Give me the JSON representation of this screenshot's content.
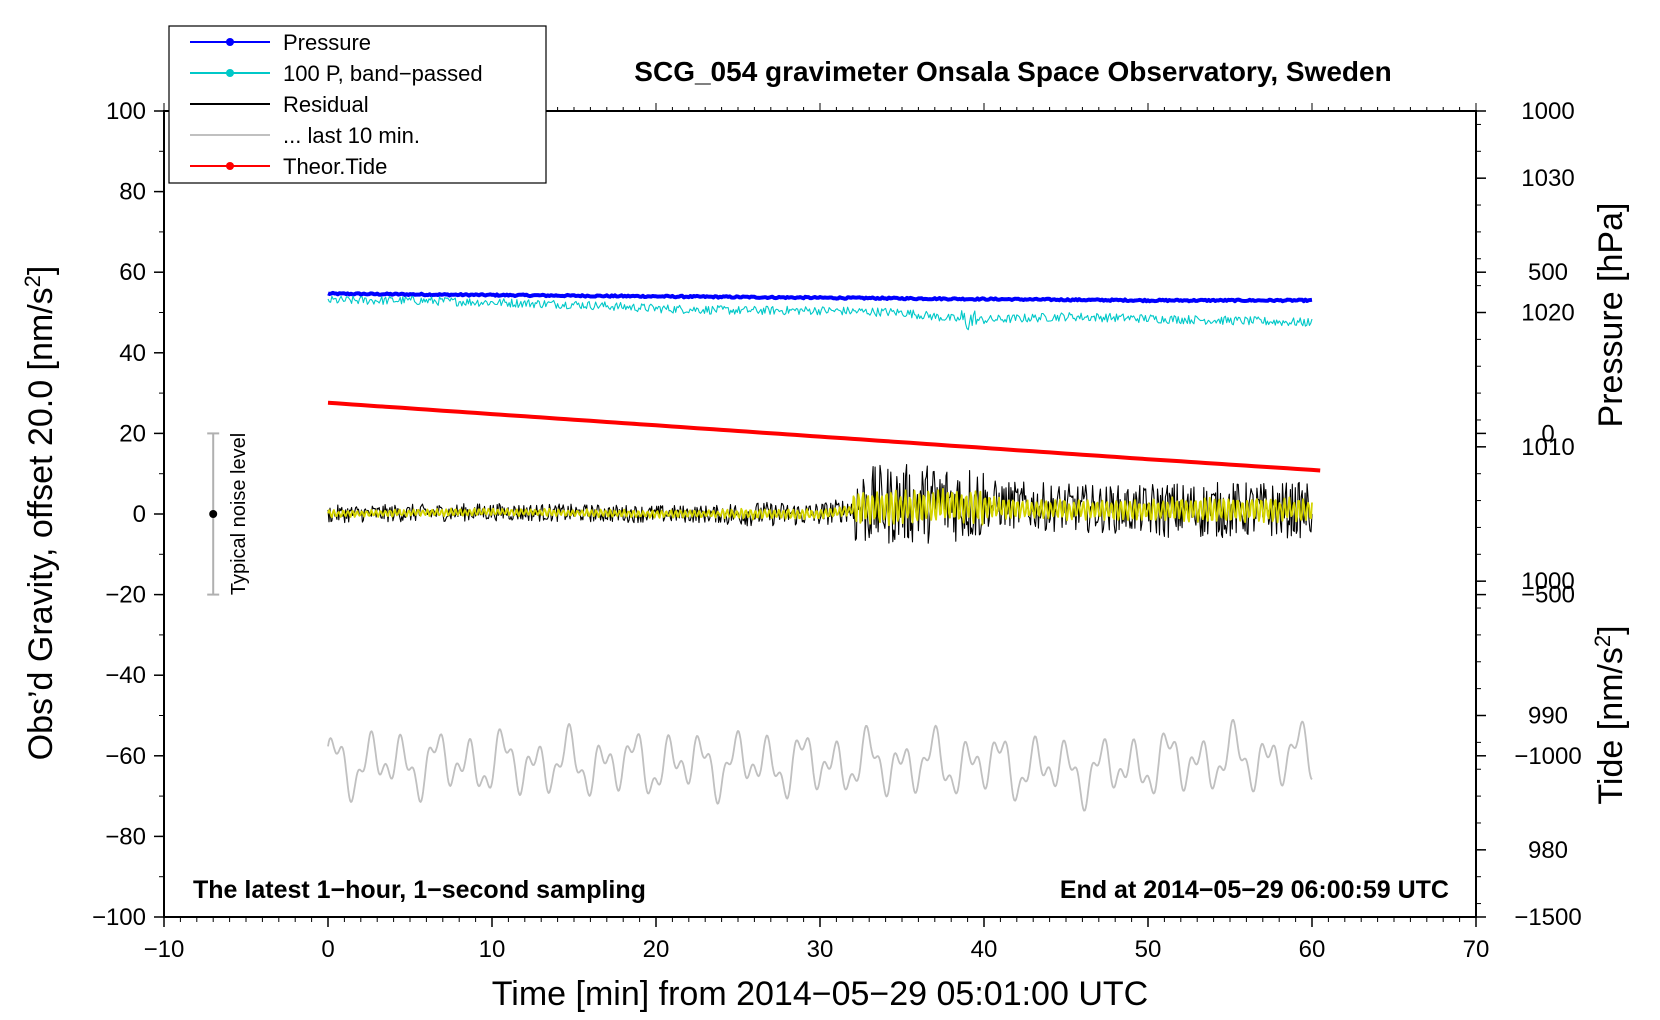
{
  "chart_data": {
    "type": "line",
    "title": "SCG_054 gravimeter Onsala Space Observatory, Sweden",
    "xlabel": "Time [min] from 2014−05−29 05:01:00 UTC",
    "ylabel_left_main": "Obs’d Gravity, offset 20.0 [nm/s",
    "ylabel_left_sup": "2",
    "ylabel_left_end": "]",
    "ylabel_right_top": "Pressure [hPa]",
    "ylabel_right_bottom_main": "Tide [nm/s",
    "ylabel_right_bottom_sup": "2",
    "ylabel_right_bottom_end": "]",
    "xlim": [
      -10,
      70
    ],
    "ylim": [
      -100,
      100
    ],
    "pressure_axis_range": [
      975,
      1035
    ],
    "tide_axis_range": [
      -1500,
      1000
    ],
    "x_ticks": [
      "−10",
      "0",
      "10",
      "20",
      "30",
      "40",
      "50",
      "60",
      "70"
    ],
    "x_tick_values": [
      -10,
      0,
      10,
      20,
      30,
      40,
      50,
      60,
      70
    ],
    "y_ticks": [
      "100",
      "80",
      "60",
      "40",
      "20",
      "0",
      "−20",
      "−40",
      "−60",
      "−80",
      "−100"
    ],
    "y_tick_values": [
      100,
      80,
      60,
      40,
      20,
      0,
      -20,
      -40,
      -60,
      -80,
      -100
    ],
    "pressure_ticks": [
      "1030",
      "1020",
      "1010",
      "1000",
      "990",
      "980"
    ],
    "pressure_tick_values": [
      1030,
      1020,
      1010,
      1000,
      990,
      980
    ],
    "tide_ticks": [
      "1000",
      "500",
      "0",
      "−500",
      "−1000",
      "−1500"
    ],
    "tide_tick_values": [
      1000,
      500,
      0,
      -500,
      -1000,
      -1500
    ],
    "legend": [
      {
        "label": "Pressure",
        "color": "#0000ff",
        "marker": true
      },
      {
        "label": "100 P, band−passed",
        "color": "#00c8c8",
        "marker": true
      },
      {
        "label": "Residual",
        "color": "#000000",
        "marker": false
      },
      {
        "label": "... last 10 min.",
        "color": "#c0c0c0",
        "marker": false
      },
      {
        "label": "Theor.Tide",
        "color": "#ff0000",
        "marker": true
      }
    ],
    "series": [
      {
        "name": "Pressure",
        "axis": "pressure",
        "color": "#0000ff",
        "x": [
          0,
          10,
          20,
          30,
          40,
          50,
          60
        ],
        "values": [
          1021.4,
          1021.3,
          1021.2,
          1021.1,
          1021.0,
          1020.9,
          1020.9
        ]
      },
      {
        "name": "100 P, band-passed",
        "axis": "gravity",
        "color": "#00c8c8",
        "x": [
          0,
          5,
          10,
          15,
          20,
          25,
          30,
          35,
          39,
          45,
          50,
          55,
          60
        ],
        "values": [
          53,
          53,
          52.5,
          52,
          51,
          50.5,
          50.5,
          50,
          48,
          49,
          48.5,
          48,
          47.5
        ]
      },
      {
        "name": "Residual",
        "axis": "gravity",
        "color": "#000000",
        "x": [
          0,
          10,
          20,
          30,
          33,
          38,
          45,
          50,
          55,
          60
        ],
        "values": [
          0,
          0.5,
          0,
          0,
          2,
          3,
          1.5,
          1,
          1,
          1
        ]
      },
      {
        "name": "Residual smoothed",
        "axis": "gravity",
        "color": "#d4d400",
        "x": [
          0,
          10,
          20,
          30,
          33,
          38,
          45,
          50,
          55,
          60
        ],
        "values": [
          0,
          0.5,
          0,
          0,
          1.5,
          2,
          1,
          1,
          1,
          1
        ]
      },
      {
        "name": "... last 10 min.",
        "axis": "gravity",
        "color": "#c0c0c0",
        "x": [
          0,
          10,
          20,
          30,
          40,
          47,
          50,
          60
        ],
        "values": [
          -62,
          -62,
          -62,
          -62,
          -62,
          -64,
          -62,
          -60
        ]
      },
      {
        "name": "Theor.Tide",
        "axis": "tide",
        "color": "#ff0000",
        "x": [
          0,
          10,
          20,
          30,
          40,
          50,
          60.5
        ],
        "values": [
          95,
          60,
          25,
          -10,
          -45,
          -80,
          -115
        ]
      }
    ],
    "noise_bar": {
      "label": "Typical noise level",
      "x": -7,
      "center": 0,
      "low": -20,
      "high": 20
    },
    "annotation_left": "The latest 1−hour, 1−second sampling",
    "annotation_right": "End at 2014−05−29 06:00:59 UTC"
  }
}
